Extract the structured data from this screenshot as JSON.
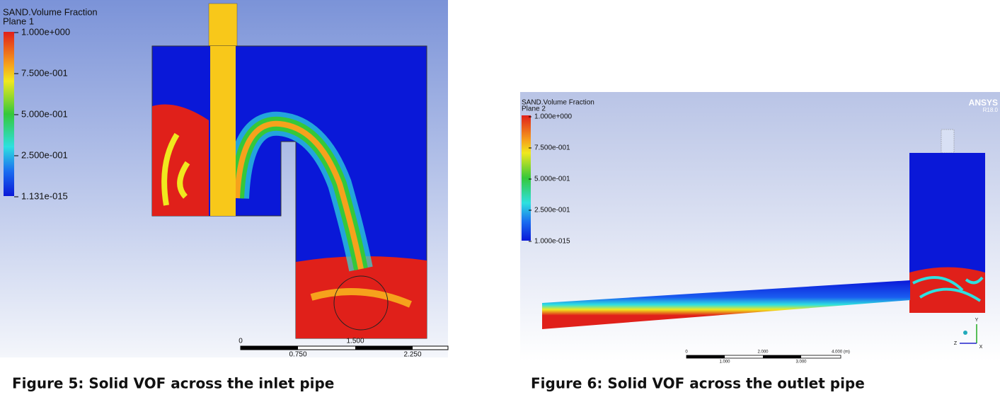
{
  "figures": [
    {
      "legend": {
        "title": "SAND.Volume Fraction",
        "plane": "Plane 1",
        "labels": [
          "1.000e+000",
          "7.500e-001",
          "5.000e-001",
          "2.500e-001",
          "1.131e-015"
        ]
      },
      "scale": {
        "top": [
          "0",
          "1.500"
        ],
        "bottom": [
          "0.750",
          "2.250"
        ]
      },
      "caption": "Figure 5: Solid VOF across the inlet pipe"
    },
    {
      "legend": {
        "title": "SAND.Volume Fraction",
        "plane": "Plane 2",
        "labels": [
          "1.000e+000",
          "7.500e-001",
          "5.000e-001",
          "2.500e-001",
          "1.000e-015"
        ]
      },
      "scale": {
        "top": [
          "0",
          "2.000",
          "4.000 (m)"
        ],
        "bottom": [
          "1.000",
          "3.000"
        ]
      },
      "logo": {
        "name": "ANSYS",
        "version": "R18.0"
      },
      "axes": [
        "Y",
        "Z",
        "X"
      ],
      "caption": "Figure 6: Solid VOF across the outlet pipe"
    }
  ]
}
